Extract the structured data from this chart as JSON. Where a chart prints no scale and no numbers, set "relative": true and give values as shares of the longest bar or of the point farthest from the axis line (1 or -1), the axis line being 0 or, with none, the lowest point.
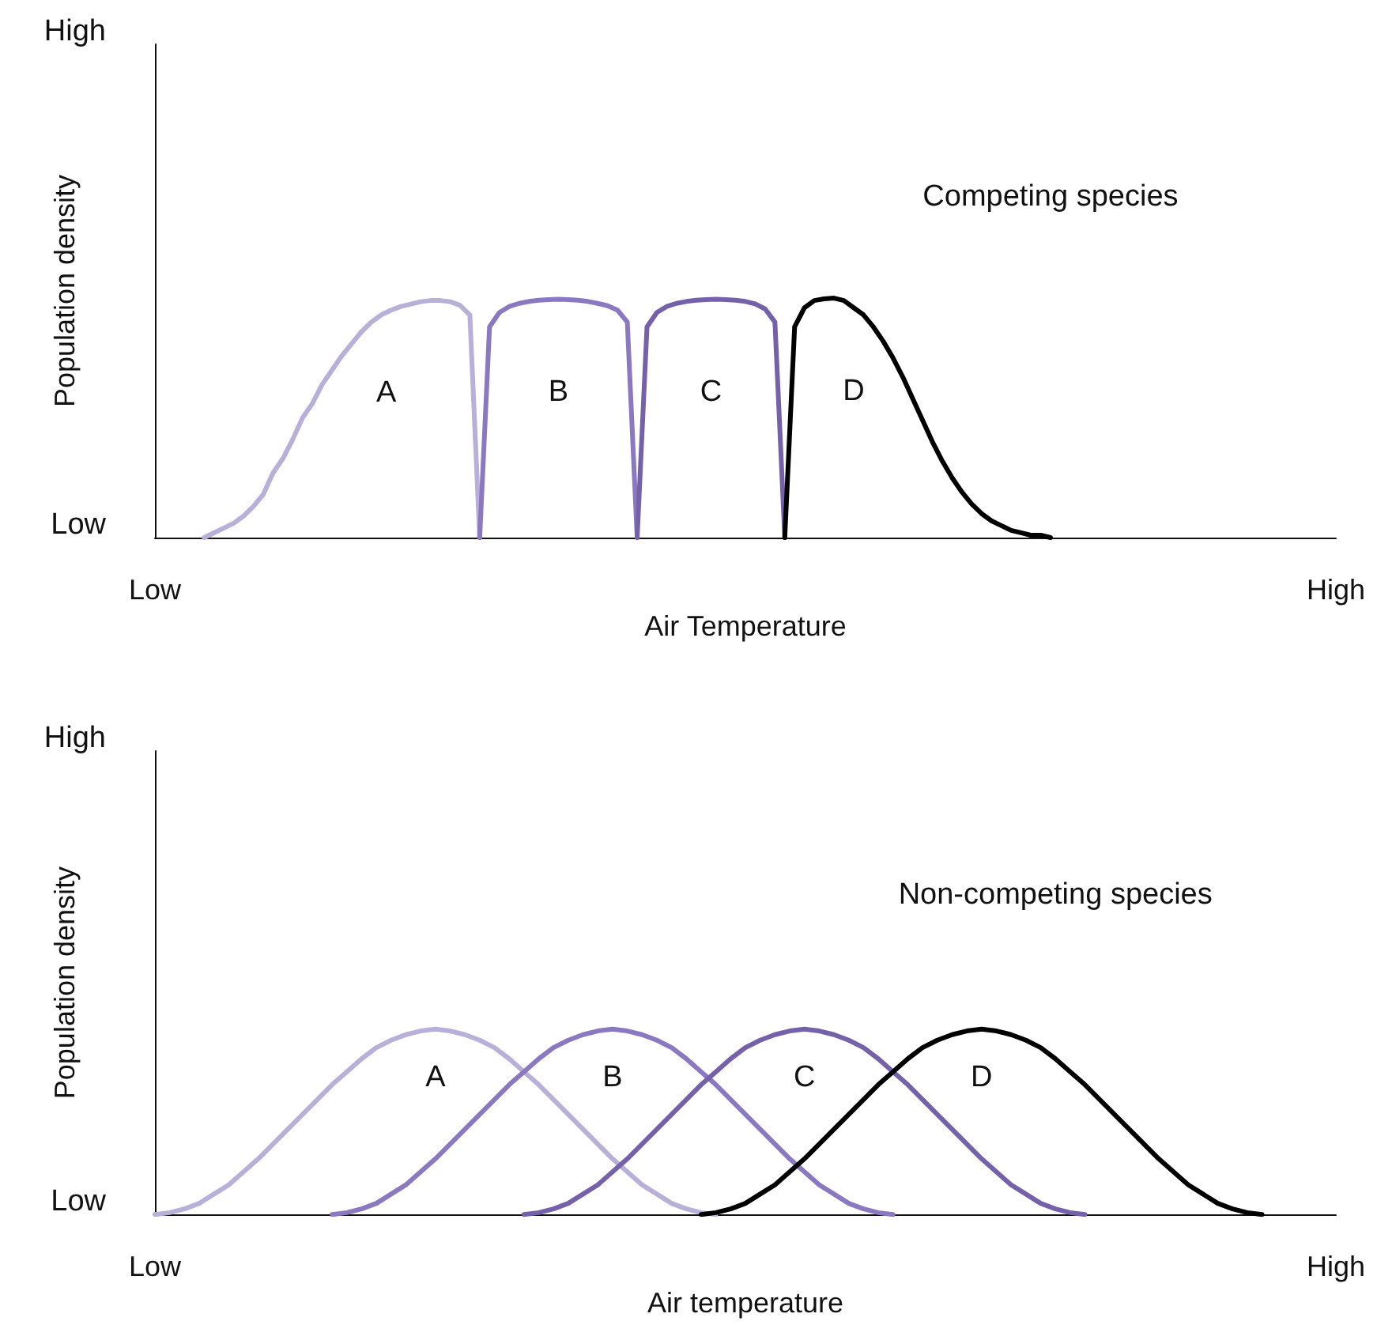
{
  "chart_data": [
    {
      "type": "line",
      "relative": true,
      "xlabel": "Air Temperature",
      "ylabel": "Population density",
      "annotations": [
        "High",
        "Low",
        "Competing species"
      ],
      "categories": [
        "Low",
        null,
        null,
        null,
        null,
        null,
        null,
        null,
        null,
        null,
        null,
        null,
        null,
        null,
        null,
        null,
        null,
        null,
        null,
        null,
        null,
        null,
        null,
        null,
        null,
        null,
        null,
        null,
        null,
        null,
        null,
        null,
        null,
        null,
        null,
        null,
        null,
        null,
        null,
        null,
        null,
        null,
        null,
        null,
        null,
        null,
        null,
        null,
        null,
        null,
        null,
        null,
        null,
        null,
        null,
        null,
        null,
        null,
        null,
        null,
        null,
        null,
        null,
        null,
        null,
        null,
        null,
        null,
        null,
        null,
        null,
        null,
        null,
        null,
        null,
        null,
        null,
        null,
        null,
        null,
        null,
        null,
        null,
        null,
        null,
        null,
        null,
        null,
        null,
        null,
        null,
        null,
        null,
        null,
        null,
        null,
        null,
        null,
        null,
        null,
        null,
        null,
        null,
        null,
        null,
        null,
        null,
        null,
        null,
        null,
        null,
        null,
        null,
        null,
        null,
        null,
        null,
        null,
        null,
        null,
        "High"
      ],
      "series": [
        {
          "name": "A",
          "color": "#b8b0d8",
          "values": [
            null,
            null,
            null,
            null,
            null,
            0,
            0.02,
            0.04,
            0.06,
            0.09,
            0.13,
            0.18,
            0.27,
            0.33,
            0.41,
            0.5,
            0.56,
            0.64,
            0.7,
            0.76,
            0.81,
            0.86,
            0.9,
            0.93,
            0.95,
            0.965,
            0.975,
            0.985,
            0.99,
            0.99,
            0.985,
            0.97,
            0.93,
            0,
            null,
            null,
            null,
            null,
            null,
            null,
            null,
            null,
            null,
            null,
            null,
            null,
            null,
            null,
            null,
            null,
            null,
            null,
            null,
            null,
            null,
            null,
            null,
            null,
            null,
            null,
            null,
            null,
            null,
            null,
            null,
            null,
            null,
            null,
            null,
            null,
            null,
            null,
            null,
            null,
            null,
            null,
            null,
            null,
            null,
            null,
            null,
            null,
            null,
            null,
            null,
            null,
            null,
            null,
            null,
            null,
            null,
            null,
            null,
            null,
            null,
            null,
            null,
            null,
            null,
            null,
            null,
            null,
            null,
            null,
            null,
            null,
            null,
            null,
            null,
            null,
            null,
            null,
            null,
            null,
            null,
            null,
            null,
            null,
            null,
            null,
            null
          ]
        },
        {
          "name": "B",
          "color": "#8a78c0",
          "values": [
            null,
            null,
            null,
            null,
            null,
            null,
            null,
            null,
            null,
            null,
            null,
            null,
            null,
            null,
            null,
            null,
            null,
            null,
            null,
            null,
            null,
            null,
            null,
            null,
            null,
            null,
            null,
            null,
            null,
            null,
            null,
            null,
            null,
            0,
            0.88,
            0.94,
            0.965,
            0.978,
            0.986,
            0.991,
            0.994,
            0.995,
            0.994,
            0.991,
            0.986,
            0.978,
            0.968,
            0.95,
            0.9,
            0,
            null,
            null,
            null,
            null,
            null,
            null,
            null,
            null,
            null,
            null,
            null,
            null,
            null,
            null,
            null,
            null,
            null,
            null,
            null,
            null,
            null,
            null,
            null,
            null,
            null,
            null,
            null,
            null,
            null,
            null,
            null,
            null,
            null,
            null,
            null,
            null,
            null,
            null,
            null,
            null,
            null,
            null,
            null,
            null,
            null,
            null,
            null,
            null,
            null,
            null,
            null,
            null,
            null,
            null,
            null,
            null,
            null,
            null,
            null,
            null,
            null,
            null,
            null,
            null,
            null,
            null,
            null,
            null,
            null,
            null,
            null
          ]
        },
        {
          "name": "C",
          "color": "#7560aa",
          "values": [
            null,
            null,
            null,
            null,
            null,
            null,
            null,
            null,
            null,
            null,
            null,
            null,
            null,
            null,
            null,
            null,
            null,
            null,
            null,
            null,
            null,
            null,
            null,
            null,
            null,
            null,
            null,
            null,
            null,
            null,
            null,
            null,
            null,
            null,
            null,
            null,
            null,
            null,
            null,
            null,
            null,
            null,
            null,
            null,
            null,
            null,
            null,
            null,
            null,
            0,
            0.88,
            0.94,
            0.965,
            0.978,
            0.986,
            0.991,
            0.994,
            0.995,
            0.994,
            0.991,
            0.986,
            0.976,
            0.955,
            0.9,
            0,
            null,
            null,
            null,
            null,
            null,
            null,
            null,
            null,
            null,
            null,
            null,
            null,
            null,
            null,
            null,
            null,
            null,
            null,
            null,
            null,
            null,
            null,
            null,
            null,
            null,
            null,
            null,
            null,
            null,
            null,
            null,
            null,
            null,
            null,
            null,
            null,
            null,
            null,
            null,
            null,
            null,
            null,
            null,
            null,
            null,
            null,
            null,
            null,
            null,
            null,
            null,
            null,
            null,
            null,
            null,
            null
          ]
        },
        {
          "name": "D",
          "color": "#000000",
          "values": [
            null,
            null,
            null,
            null,
            null,
            null,
            null,
            null,
            null,
            null,
            null,
            null,
            null,
            null,
            null,
            null,
            null,
            null,
            null,
            null,
            null,
            null,
            null,
            null,
            null,
            null,
            null,
            null,
            null,
            null,
            null,
            null,
            null,
            null,
            null,
            null,
            null,
            null,
            null,
            null,
            null,
            null,
            null,
            null,
            null,
            null,
            null,
            null,
            null,
            null,
            null,
            null,
            null,
            null,
            null,
            null,
            null,
            null,
            null,
            null,
            null,
            null,
            null,
            null,
            0,
            0.88,
            0.96,
            0.99,
            0.997,
            1,
            0.99,
            0.96,
            0.93,
            0.88,
            0.82,
            0.75,
            0.67,
            0.58,
            0.49,
            0.4,
            0.32,
            0.25,
            0.19,
            0.14,
            0.1,
            0.07,
            0.05,
            0.03,
            0.02,
            0.01,
            0.01,
            0,
            null,
            null,
            null,
            null,
            null,
            null,
            null,
            null,
            null,
            null,
            null,
            null,
            null,
            null,
            null,
            null,
            null,
            null,
            null,
            null,
            null,
            null,
            null,
            null,
            null,
            null,
            null,
            null,
            null
          ]
        }
      ]
    },
    {
      "type": "line",
      "relative": true,
      "xlabel": "Air temperature",
      "ylabel": "Population density",
      "annotations": [
        "High",
        "Low",
        "Non-competing species"
      ],
      "categories": [
        "Low",
        null,
        null,
        null,
        null,
        null,
        null,
        null,
        null,
        null,
        null,
        null,
        null,
        null,
        null,
        null,
        null,
        null,
        null,
        null,
        null,
        null,
        null,
        null,
        null,
        null,
        null,
        null,
        null,
        null,
        null,
        null,
        null,
        null,
        null,
        null,
        null,
        null,
        null,
        null,
        null,
        null,
        null,
        null,
        null,
        null,
        null,
        null,
        null,
        null,
        null,
        null,
        null,
        null,
        null,
        null,
        null,
        null,
        null,
        null,
        null,
        null,
        null,
        null,
        null,
        null,
        null,
        null,
        null,
        null,
        null,
        null,
        null,
        null,
        null,
        null,
        null,
        null,
        null,
        null,
        "High"
      ],
      "series": [
        {
          "name": "A",
          "color": "#b8b0d8",
          "values": [
            0,
            0.01,
            0.03,
            0.06,
            0.11,
            0.16,
            0.23,
            0.3,
            0.38,
            0.46,
            0.54,
            0.62,
            0.7,
            0.77,
            0.84,
            0.9,
            0.94,
            0.97,
            0.99,
            1,
            0.99,
            0.97,
            0.94,
            0.9,
            0.84,
            0.77,
            0.7,
            0.62,
            0.54,
            0.46,
            0.38,
            0.3,
            0.23,
            0.16,
            0.11,
            0.06,
            0.03,
            0.01,
            0,
            null,
            null,
            null,
            null,
            null,
            null,
            null,
            null,
            null,
            null,
            null,
            null,
            null,
            null,
            null,
            null,
            null,
            null,
            null,
            null,
            null,
            null,
            null,
            null,
            null,
            null,
            null,
            null,
            null,
            null,
            null,
            null,
            null,
            null,
            null,
            null,
            null,
            null,
            null,
            null,
            null,
            null
          ]
        },
        {
          "name": "B",
          "color": "#8a78c0",
          "values": [
            null,
            null,
            null,
            null,
            null,
            null,
            null,
            null,
            null,
            null,
            null,
            null,
            0,
            0.01,
            0.03,
            0.06,
            0.11,
            0.16,
            0.23,
            0.3,
            0.38,
            0.46,
            0.54,
            0.62,
            0.7,
            0.77,
            0.84,
            0.9,
            0.94,
            0.97,
            0.99,
            1,
            0.99,
            0.97,
            0.94,
            0.9,
            0.84,
            0.77,
            0.7,
            0.62,
            0.54,
            0.46,
            0.38,
            0.3,
            0.23,
            0.16,
            0.11,
            0.06,
            0.03,
            0.01,
            0,
            null,
            null,
            null,
            null,
            null,
            null,
            null,
            null,
            null,
            null,
            null,
            null,
            null,
            null,
            null,
            null,
            null,
            null,
            null,
            null,
            null,
            null,
            null,
            null,
            null,
            null,
            null,
            null,
            null,
            null
          ]
        },
        {
          "name": "C",
          "color": "#7560aa",
          "values": [
            null,
            null,
            null,
            null,
            null,
            null,
            null,
            null,
            null,
            null,
            null,
            null,
            null,
            null,
            null,
            null,
            null,
            null,
            null,
            null,
            null,
            null,
            null,
            null,
            null,
            0,
            0.01,
            0.03,
            0.06,
            0.11,
            0.16,
            0.23,
            0.3,
            0.38,
            0.46,
            0.54,
            0.62,
            0.7,
            0.77,
            0.84,
            0.9,
            0.94,
            0.97,
            0.99,
            1,
            0.99,
            0.97,
            0.94,
            0.9,
            0.84,
            0.77,
            0.7,
            0.62,
            0.54,
            0.46,
            0.38,
            0.3,
            0.23,
            0.16,
            0.11,
            0.06,
            0.03,
            0.01,
            0,
            null,
            null,
            null,
            null,
            null,
            null,
            null,
            null,
            null,
            null,
            null,
            null,
            null,
            null,
            null,
            null,
            null
          ]
        },
        {
          "name": "D",
          "color": "#000000",
          "values": [
            null,
            null,
            null,
            null,
            null,
            null,
            null,
            null,
            null,
            null,
            null,
            null,
            null,
            null,
            null,
            null,
            null,
            null,
            null,
            null,
            null,
            null,
            null,
            null,
            null,
            null,
            null,
            null,
            null,
            null,
            null,
            null,
            null,
            null,
            null,
            null,
            null,
            0,
            0.01,
            0.03,
            0.06,
            0.11,
            0.16,
            0.23,
            0.3,
            0.38,
            0.46,
            0.54,
            0.62,
            0.7,
            0.77,
            0.84,
            0.9,
            0.94,
            0.97,
            0.99,
            1,
            0.99,
            0.97,
            0.94,
            0.9,
            0.84,
            0.77,
            0.7,
            0.62,
            0.54,
            0.46,
            0.38,
            0.3,
            0.23,
            0.16,
            0.11,
            0.06,
            0.03,
            0.01,
            0,
            null,
            null,
            null,
            null,
            null
          ]
        }
      ]
    }
  ]
}
